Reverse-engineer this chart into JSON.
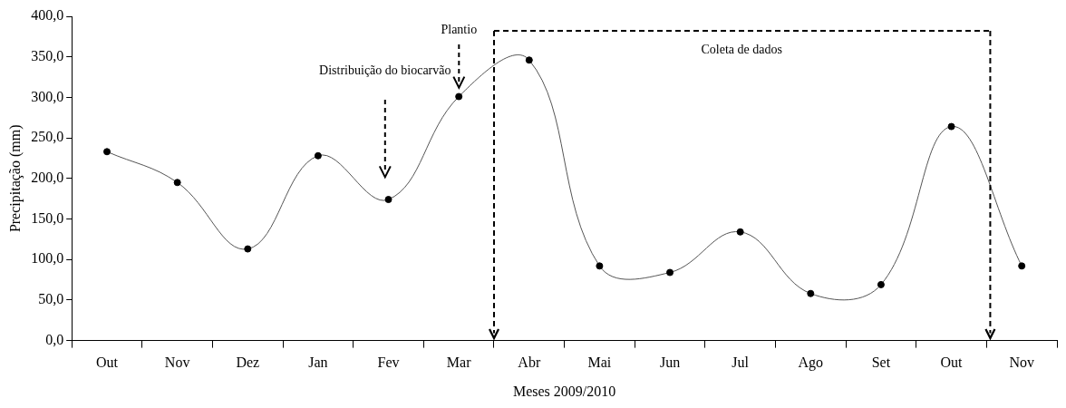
{
  "chart_data": {
    "type": "line",
    "xlabel": "Meses 2009/2010",
    "ylabel": "Precipitação (mm)",
    "categories": [
      "Out",
      "Nov",
      "Dez",
      "Jan",
      "Fev",
      "Mar",
      "Abr",
      "Mai",
      "Jun",
      "Jul",
      "Ago",
      "Set",
      "Out",
      "Nov"
    ],
    "series": [
      {
        "color": "#000000",
        "values": [
          233,
          195,
          113,
          228,
          174,
          301,
          346,
          92,
          84,
          134,
          58,
          69,
          264,
          92
        ]
      }
    ],
    "ylim": [
      0,
      400
    ],
    "yticks": [
      {
        "value": 0,
        "label": "0,0"
      },
      {
        "value": 50,
        "label": "50,0"
      },
      {
        "value": 100,
        "label": "100,0"
      },
      {
        "value": 150,
        "label": "150,0"
      },
      {
        "value": 200,
        "label": "200,0"
      },
      {
        "value": 250,
        "label": "250,0"
      },
      {
        "value": 300,
        "label": "300,0"
      },
      {
        "value": 350,
        "label": "350,0"
      },
      {
        "value": 400,
        "label": "400,0"
      }
    ],
    "annotations": [
      "Distribuição do biocarvão",
      "Plantio",
      "Coleta de dados"
    ],
    "marker": "circle",
    "grid": false,
    "legend": false
  }
}
